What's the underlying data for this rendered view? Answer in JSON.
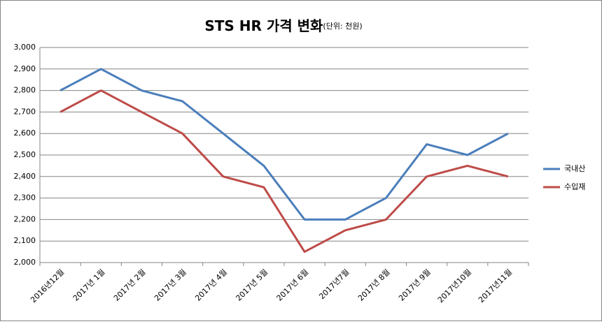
{
  "chart_data": {
    "type": "line",
    "title": "STS HR 가격 변화",
    "subtitle": "(단위: 천원)",
    "categories": [
      "2016년12월",
      "2017년 1월",
      "2017년 2월",
      "2017년 3월",
      "2017년 4월",
      "2017년 5월",
      "2017년 6월",
      "2017년7월",
      "2017년 8월",
      "2017년 9월",
      "2017년10월",
      "2017년11월"
    ],
    "series": [
      {
        "name": "국내산",
        "color": "#4a7ebb",
        "values": [
          2800,
          2900,
          2800,
          2750,
          2600,
          2450,
          2200,
          2200,
          2300,
          2550,
          2500,
          2600
        ]
      },
      {
        "name": "수입재",
        "color": "#be4b48",
        "values": [
          2700,
          2800,
          2700,
          2600,
          2400,
          2350,
          2050,
          2150,
          2200,
          2400,
          2450,
          2400
        ]
      }
    ],
    "ylim": [
      2000,
      3000
    ],
    "yticks": [
      {
        "value": 2000,
        "label": "2,000"
      },
      {
        "value": 2100,
        "label": "2,100"
      },
      {
        "value": 2200,
        "label": "2,200"
      },
      {
        "value": 2300,
        "label": "2,300"
      },
      {
        "value": 2400,
        "label": "2,400"
      },
      {
        "value": 2500,
        "label": "2,500"
      },
      {
        "value": 2600,
        "label": "2,600"
      },
      {
        "value": 2700,
        "label": "2,700"
      },
      {
        "value": 2800,
        "label": "2,800"
      },
      {
        "value": 2900,
        "label": "2,900"
      },
      {
        "value": 3000,
        "label": "3,000"
      }
    ],
    "grid": true,
    "legend": "right"
  }
}
